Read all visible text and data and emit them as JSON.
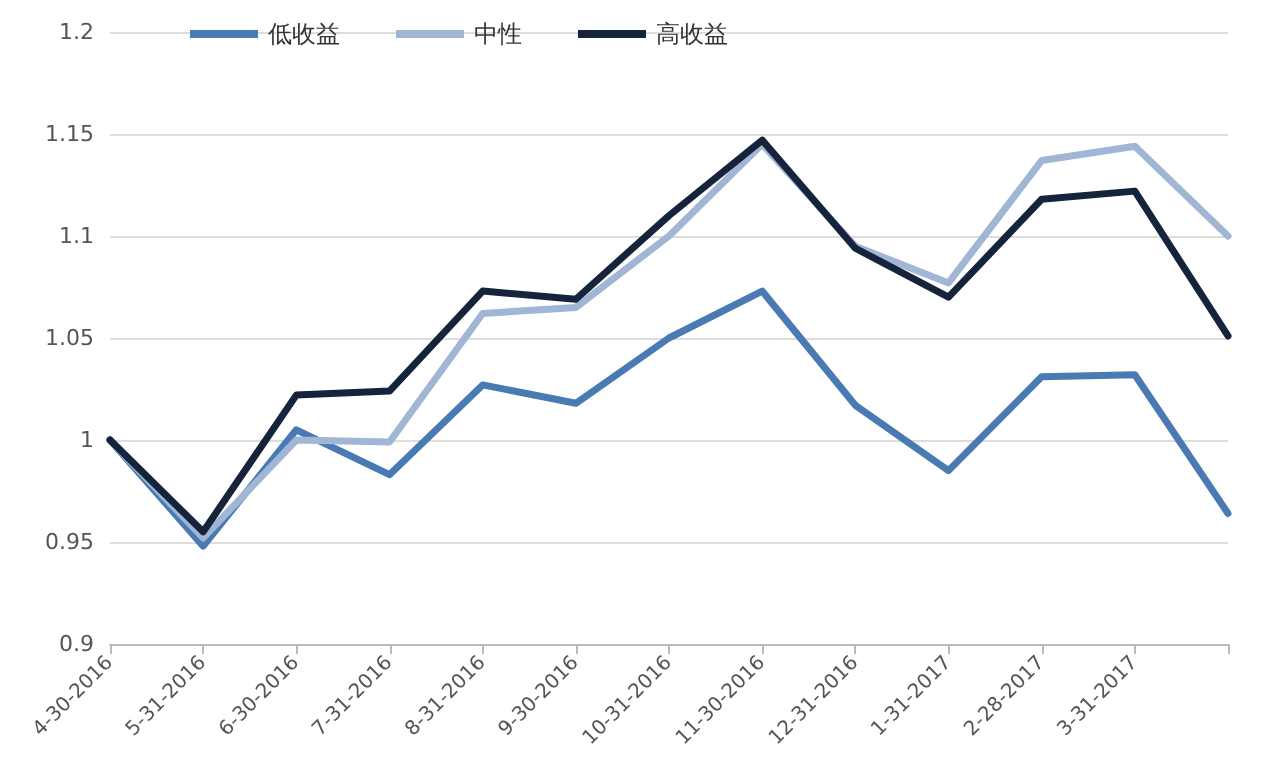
{
  "chart_data": {
    "type": "line",
    "categories": [
      "4-30-2016",
      "5-31-2016",
      "6-30-2016",
      "7-31-2016",
      "8-31-2016",
      "9-30-2016",
      "10-31-2016",
      "11-30-2016",
      "12-31-2016",
      "1-31-2017",
      "2-28-2017",
      "3-31-2017",
      null
    ],
    "series": [
      {
        "name": "低收益",
        "color": "#4a7ab3",
        "values": [
          1.0,
          0.948,
          1.005,
          0.983,
          1.027,
          1.018,
          1.05,
          1.073,
          1.017,
          0.985,
          1.031,
          1.032,
          0.964
        ]
      },
      {
        "name": "中性",
        "color": "#a0b6d4",
        "values": [
          1.0,
          0.952,
          1.0,
          0.999,
          1.062,
          1.065,
          1.1,
          1.145,
          1.095,
          1.077,
          1.137,
          1.144,
          1.1
        ]
      },
      {
        "name": "高收益",
        "color": "#15233b",
        "values": [
          1.0,
          0.955,
          1.022,
          1.024,
          1.073,
          1.069,
          1.11,
          1.147,
          1.094,
          1.07,
          1.118,
          1.122,
          1.051
        ]
      }
    ],
    "ylim": [
      0.9,
      1.2
    ],
    "yticks": [
      0.9,
      0.95,
      1,
      1.05,
      1.1,
      1.15,
      1.2
    ],
    "grid": "y",
    "legend": "top left",
    "marker": "none",
    "line_style": "solid"
  }
}
